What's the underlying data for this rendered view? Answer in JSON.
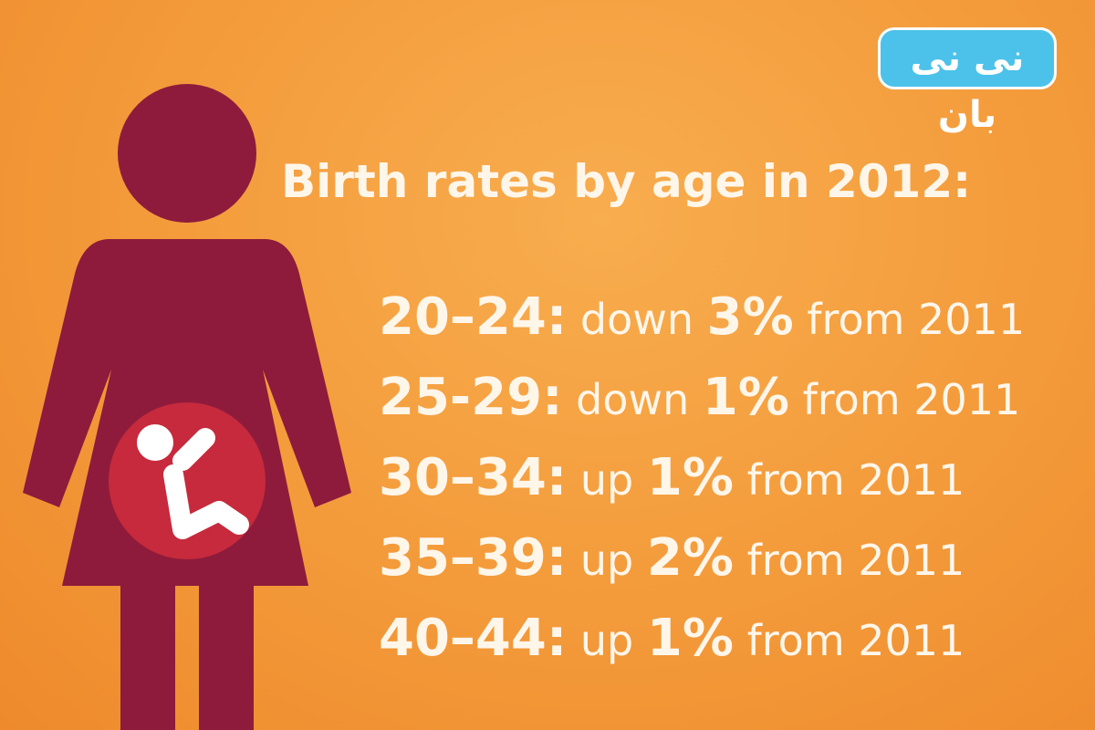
{
  "logo": "نی نی بان",
  "title": "Birth rates by age in 2012:",
  "rows": [
    {
      "age": "20–24:",
      "direction": "down",
      "change": "3%",
      "suffix": "from 2011"
    },
    {
      "age": "25-29:",
      "direction": "down",
      "change": "1%",
      "suffix": "from 2011"
    },
    {
      "age": "30–34:",
      "direction": "up",
      "change": "1%",
      "suffix": "from 2011"
    },
    {
      "age": "35–39:",
      "direction": "up",
      "change": "2%",
      "suffix": "from 2011"
    },
    {
      "age": "40–44:",
      "direction": "up",
      "change": "1%",
      "suffix": "from 2011"
    }
  ]
}
